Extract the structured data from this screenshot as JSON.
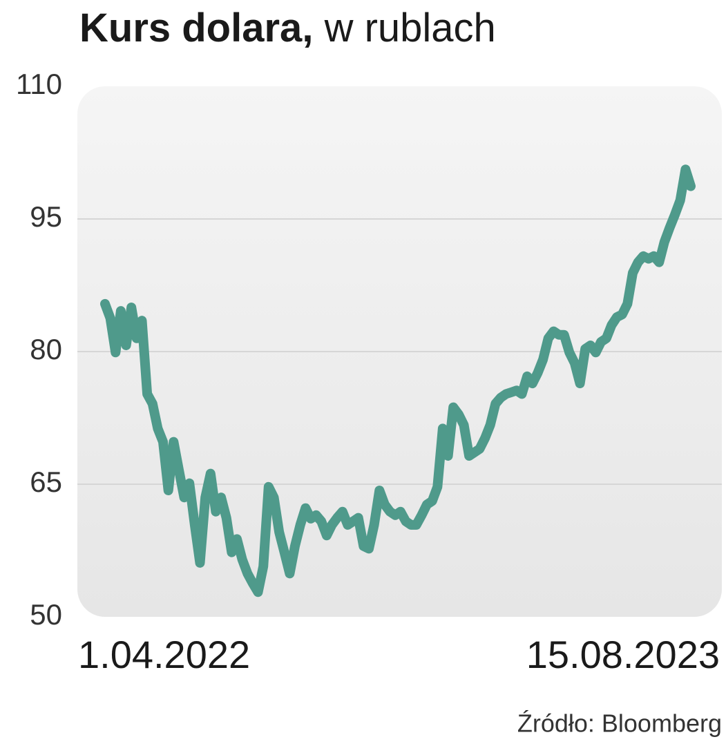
{
  "chart_data": {
    "type": "line",
    "title": "Kurs dolara,",
    "subtitle": "w rublach",
    "source": "Źródło: Bloomberg",
    "categories": [
      "1.04.2022",
      null,
      null,
      null,
      null,
      null,
      null,
      null,
      null,
      null,
      null,
      null,
      null,
      null,
      null,
      null,
      null,
      null,
      null,
      null,
      null,
      null,
      null,
      null,
      null,
      null,
      null,
      null,
      null,
      null,
      null,
      null,
      null,
      null,
      null,
      null,
      null,
      null,
      null,
      null,
      null,
      null,
      null,
      null,
      null,
      null,
      null,
      null,
      null,
      null,
      null,
      null,
      null,
      null,
      null,
      null,
      null,
      null,
      null,
      null,
      null,
      null,
      null,
      null,
      null,
      null,
      null,
      null,
      null,
      null,
      null,
      null,
      null,
      null,
      null,
      null,
      null,
      null,
      null,
      null,
      null,
      null,
      null,
      null,
      null,
      null,
      null,
      null,
      null,
      null,
      null,
      null,
      null,
      null,
      null,
      null,
      null,
      null,
      null,
      null,
      null,
      null,
      null,
      null,
      null,
      null,
      null,
      null,
      null,
      null,
      null,
      "15.08.2023"
    ],
    "values": [
      85.4,
      83.8,
      79.9,
      84.6,
      80.7,
      85,
      81.5,
      83.5,
      75.2,
      74.1,
      71.3,
      69.8,
      64.3,
      69.8,
      66.6,
      63.5,
      65.1,
      60.4,
      56.1,
      63.5,
      66.2,
      61.9,
      63.5,
      61.2,
      57.3,
      58.8,
      56.5,
      54.9,
      53.8,
      52.8,
      55.7,
      64.7,
      63.5,
      59.6,
      57.3,
      54.9,
      58,
      60.4,
      62.3,
      61.1,
      61.5,
      60.8,
      59.2,
      60.4,
      61.2,
      61.9,
      60.4,
      60.8,
      61.2,
      58,
      57.7,
      60.4,
      64.3,
      62.7,
      61.9,
      61.5,
      61.9,
      60.8,
      60.4,
      60.4,
      61.5,
      62.7,
      63.1,
      64.7,
      71.3,
      68.2,
      73.7,
      72.9,
      71.7,
      68.2,
      68.6,
      69,
      70.2,
      71.7,
      74.1,
      74.8,
      75.2,
      75.4,
      75.6,
      75.2,
      77.2,
      76.4,
      77.6,
      79.1,
      81.5,
      82.3,
      81.9,
      81.9,
      79.9,
      78.7,
      76.4,
      80.3,
      80.7,
      79.9,
      81.1,
      81.5,
      83,
      83.9,
      84.2,
      85.4,
      88.9,
      90.1,
      90.8,
      90.5,
      90.8,
      90.1,
      92.4,
      94,
      95.5,
      97.1,
      100.6,
      98.7
    ],
    "color": "#4f9a8b",
    "ylim": [
      50,
      110
    ],
    "yticks": [
      50,
      65,
      80,
      95,
      110
    ],
    "grid": true
  }
}
